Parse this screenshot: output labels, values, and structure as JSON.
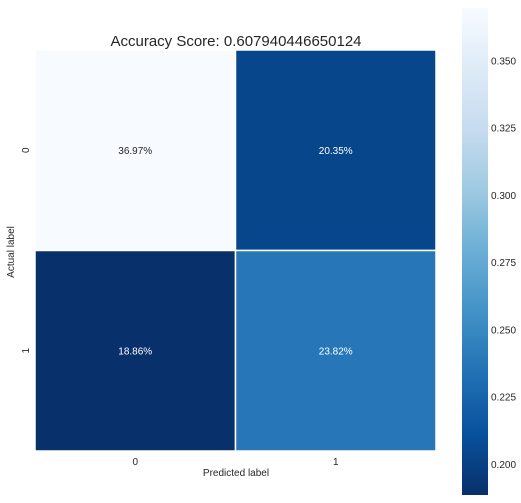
{
  "chart_data": {
    "type": "heatmap",
    "title": "Accuracy Score: 0.607940446650124",
    "xlabel": "Predicted label",
    "ylabel": "Actual label",
    "x_categories": [
      "0",
      "1"
    ],
    "y_categories": [
      "0",
      "1"
    ],
    "values": [
      [
        0.3697,
        0.2035
      ],
      [
        0.1886,
        0.2382
      ]
    ],
    "annotations": [
      [
        "36.97%",
        "20.35%"
      ],
      [
        "18.86%",
        "23.82%"
      ]
    ],
    "colormap": "Blues_r",
    "colorbar": {
      "range": [
        0.1886,
        0.3697
      ],
      "ticks": [
        0.2,
        0.225,
        0.25,
        0.275,
        0.3,
        0.325,
        0.35
      ],
      "tick_labels": [
        "0.200",
        "0.225",
        "0.250",
        "0.275",
        "0.300",
        "0.325",
        "0.350"
      ]
    },
    "cell_border_color": "#ffffff"
  }
}
